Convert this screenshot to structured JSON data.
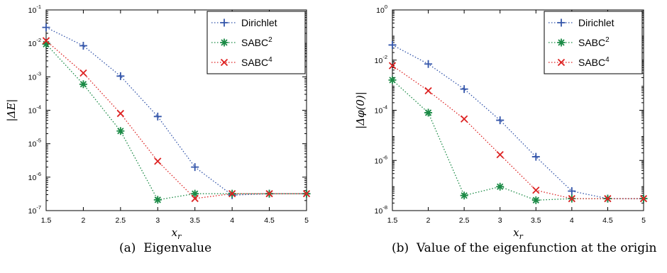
{
  "colors": {
    "dirichlet": "#3355aa",
    "sabc2": "#1a8a45",
    "sabc4": "#dd2222"
  },
  "chart_data": [
    {
      "type": "line",
      "caption_label": "(a)",
      "caption_text": "Eigenvalue",
      "xlabel": "x_r",
      "ylabel": "|ΔE|",
      "xlim": [
        1.5,
        5
      ],
      "ylim": [
        1e-07,
        0.1
      ],
      "yscale": "log",
      "xticks": [
        "1.5",
        "2",
        "2.5",
        "3",
        "3.5",
        "4",
        "4.5",
        "5"
      ],
      "yticks": [
        {
          "base": "10",
          "exp": "-7",
          "value": 1e-07
        },
        {
          "base": "10",
          "exp": "-6",
          "value": 1e-06
        },
        {
          "base": "10",
          "exp": "-5",
          "value": 1e-05
        },
        {
          "base": "10",
          "exp": "-4",
          "value": 0.0001
        },
        {
          "base": "10",
          "exp": "-3",
          "value": 0.001
        },
        {
          "base": "10",
          "exp": "-2",
          "value": 0.01
        },
        {
          "base": "10",
          "exp": "-1",
          "value": 0.1
        }
      ],
      "legend_position": "top-right",
      "series": [
        {
          "name": "Dirichlet",
          "marker": "plus",
          "x": [
            1.5,
            2,
            2.5,
            3,
            3.5,
            4,
            4.5,
            5
          ],
          "y": [
            0.03,
            0.0085,
            0.00105,
            6.5e-05,
            2e-06,
            2.9e-07,
            3.2e-07,
            3.2e-07
          ]
        },
        {
          "name": "SABC",
          "sup": "2",
          "marker": "star",
          "x": [
            1.5,
            2,
            2.5,
            3,
            3.5,
            4,
            4.5,
            5
          ],
          "y": [
            0.0095,
            0.0006,
            2.4e-05,
            2.1e-07,
            3.2e-07,
            3.2e-07,
            3.2e-07,
            3.2e-07
          ]
        },
        {
          "name": "SABC",
          "sup": "4",
          "marker": "x",
          "x": [
            1.5,
            2,
            2.5,
            3,
            3.5,
            4,
            4.5,
            5
          ],
          "y": [
            0.012,
            0.0013,
            8e-05,
            3e-06,
            2.3e-07,
            3.2e-07,
            3.2e-07,
            3.2e-07
          ]
        }
      ]
    },
    {
      "type": "line",
      "caption_label": "(b)",
      "caption_text": "Value of the eigenfunction at the origin",
      "xlabel": "x_r",
      "ylabel": "|Δφ(0)|",
      "xlim": [
        1.5,
        5
      ],
      "ylim": [
        1e-08,
        1
      ],
      "yscale": "log",
      "xticks": [
        "1.5",
        "2",
        "2.5",
        "3",
        "3.5",
        "4",
        "4.5",
        "5"
      ],
      "yticks": [
        {
          "base": "10",
          "exp": "-8",
          "value": 1e-08
        },
        {
          "base": "10",
          "exp": "-6",
          "value": 1e-06
        },
        {
          "base": "10",
          "exp": "-4",
          "value": 0.0001
        },
        {
          "base": "10",
          "exp": "-2",
          "value": 0.01
        },
        {
          "base": "10",
          "exp": "0",
          "value": 1
        }
      ],
      "legend_position": "top-right",
      "series": [
        {
          "name": "Dirichlet",
          "marker": "plus",
          "x": [
            1.5,
            2,
            2.5,
            3,
            3.5,
            4,
            4.5,
            5
          ],
          "y": [
            0.04,
            0.007,
            0.0007,
            4e-05,
            1.4e-06,
            6e-08,
            3e-08,
            3e-08
          ]
        },
        {
          "name": "SABC",
          "sup": "2",
          "marker": "star",
          "x": [
            1.5,
            2,
            2.5,
            3,
            3.5,
            4,
            4.5,
            5
          ],
          "y": [
            0.0016,
            8e-05,
            4e-08,
            9e-08,
            2.6e-08,
            3e-08,
            3e-08,
            3e-08
          ]
        },
        {
          "name": "SABC",
          "sup": "4",
          "marker": "x",
          "x": [
            1.5,
            2,
            2.5,
            3,
            3.5,
            4,
            4.5,
            5
          ],
          "y": [
            0.006,
            0.0006,
            4.5e-05,
            1.7e-06,
            6.5e-08,
            3e-08,
            3e-08,
            3e-08
          ]
        }
      ]
    }
  ]
}
